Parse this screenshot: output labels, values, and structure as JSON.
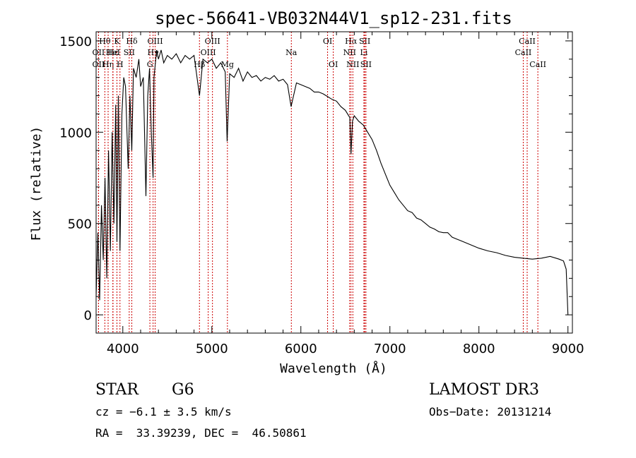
{
  "chart_data": {
    "type": "line",
    "title": "spec-56641-VB032N44V1_sp12-231.fits",
    "xlabel": "Wavelength (Å)",
    "ylabel": "Flux (relative)",
    "xlim": [
      3700,
      9050
    ],
    "ylim": [
      -100,
      1550
    ],
    "xticks": [
      4000,
      5000,
      6000,
      7000,
      8000,
      9000
    ],
    "yticks": [
      0,
      500,
      1000,
      1500
    ],
    "grid": false,
    "series": [
      {
        "name": "spectrum",
        "x": [
          3700,
          3720,
          3740,
          3760,
          3780,
          3800,
          3820,
          3840,
          3860,
          3880,
          3900,
          3920,
          3934,
          3950,
          3968,
          3990,
          4010,
          4030,
          4060,
          4080,
          4101,
          4120,
          4150,
          4180,
          4200,
          4230,
          4260,
          4280,
          4300,
          4320,
          4340,
          4350,
          4380,
          4400,
          4430,
          4460,
          4500,
          4550,
          4600,
          4650,
          4700,
          4750,
          4800,
          4861,
          4900,
          4950,
          5000,
          5050,
          5100,
          5150,
          5172,
          5200,
          5250,
          5300,
          5350,
          5400,
          5450,
          5500,
          5550,
          5600,
          5650,
          5700,
          5750,
          5800,
          5850,
          5890,
          5950,
          6000,
          6050,
          6100,
          6150,
          6200,
          6250,
          6300,
          6350,
          6400,
          6450,
          6500,
          6550,
          6563,
          6580,
          6600,
          6650,
          6700,
          6750,
          6800,
          6850,
          6900,
          6950,
          7000,
          7050,
          7100,
          7150,
          7200,
          7250,
          7300,
          7350,
          7400,
          7450,
          7500,
          7550,
          7600,
          7650,
          7700,
          7750,
          7800,
          7850,
          7900,
          7950,
          8000,
          8100,
          8200,
          8300,
          8400,
          8500,
          8600,
          8700,
          8800,
          8900,
          8950,
          8980,
          9000
        ],
        "values": [
          100,
          450,
          80,
          600,
          300,
          750,
          200,
          900,
          350,
          1000,
          500,
          1150,
          400,
          1200,
          350,
          1100,
          1300,
          1250,
          800,
          1200,
          900,
          1350,
          1300,
          1400,
          1250,
          1300,
          650,
          1200,
          1350,
          1000,
          750,
          1300,
          1450,
          1400,
          1450,
          1380,
          1420,
          1400,
          1430,
          1380,
          1420,
          1400,
          1420,
          1200,
          1400,
          1380,
          1400,
          1350,
          1380,
          1330,
          950,
          1320,
          1300,
          1350,
          1280,
          1330,
          1300,
          1310,
          1280,
          1300,
          1290,
          1310,
          1280,
          1290,
          1260,
          1140,
          1270,
          1260,
          1250,
          1240,
          1220,
          1220,
          1210,
          1195,
          1180,
          1170,
          1140,
          1120,
          1080,
          880,
          1060,
          1090,
          1060,
          1040,
          1000,
          960,
          900,
          830,
          770,
          710,
          670,
          630,
          600,
          570,
          560,
          530,
          520,
          500,
          480,
          470,
          455,
          450,
          450,
          425,
          415,
          405,
          395,
          385,
          375,
          365,
          350,
          340,
          325,
          315,
          310,
          305,
          310,
          320,
          305,
          295,
          250,
          0
        ]
      }
    ],
    "lines": [
      {
        "label": "Hθ",
        "x": 3798,
        "row": 1
      },
      {
        "label": "OII",
        "x": 3727,
        "row": 2
      },
      {
        "label": "OII",
        "x": 3727,
        "row": 3
      },
      {
        "label": "Hε",
        "x": 3889,
        "row": 2
      },
      {
        "label": "Hη",
        "x": 3835,
        "row": 3
      },
      {
        "label": "K",
        "x": 3934,
        "row": 1
      },
      {
        "label": "HeI",
        "x": 3889,
        "row": 2
      },
      {
        "label": "H",
        "x": 3968,
        "row": 3
      },
      {
        "label": "Hδ",
        "x": 4101,
        "row": 1
      },
      {
        "label": "SII",
        "x": 4072,
        "row": 2
      },
      {
        "label": "OIII",
        "x": 4363,
        "row": 1
      },
      {
        "label": "Hγ",
        "x": 4340,
        "row": 2
      },
      {
        "label": "G",
        "x": 4304,
        "row": 3
      },
      {
        "label": "OIII",
        "x": 5007,
        "row": 1
      },
      {
        "label": "OIII",
        "x": 4959,
        "row": 2
      },
      {
        "label": "Hβ",
        "x": 4861,
        "row": 3
      },
      {
        "label": "Mg",
        "x": 5175,
        "row": 3
      },
      {
        "label": "Na",
        "x": 5893,
        "row": 2
      },
      {
        "label": "OI",
        "x": 6300,
        "row": 1
      },
      {
        "label": "OI",
        "x": 6364,
        "row": 3
      },
      {
        "label": "Hα",
        "x": 6563,
        "row": 1
      },
      {
        "label": "NII",
        "x": 6548,
        "row": 2
      },
      {
        "label": "NII",
        "x": 6584,
        "row": 3
      },
      {
        "label": "SII",
        "x": 6717,
        "row": 1
      },
      {
        "label": "Li",
        "x": 6708,
        "row": 2
      },
      {
        "label": "SII",
        "x": 6731,
        "row": 3
      },
      {
        "label": "CaII",
        "x": 8542,
        "row": 1
      },
      {
        "label": "CaII",
        "x": 8498,
        "row": 2
      },
      {
        "label": "CaII",
        "x": 8662,
        "row": 3
      }
    ],
    "line_color": "#cc0000"
  },
  "info": {
    "object_type": "STAR",
    "subclass": "G6",
    "survey": "LAMOST DR3",
    "cz": "cz = −6.1 ± 3.5 km/s",
    "obs_date": "Obs−Date: 20131214",
    "coords": "RA =  33.39239, DEC =  46.50861"
  }
}
